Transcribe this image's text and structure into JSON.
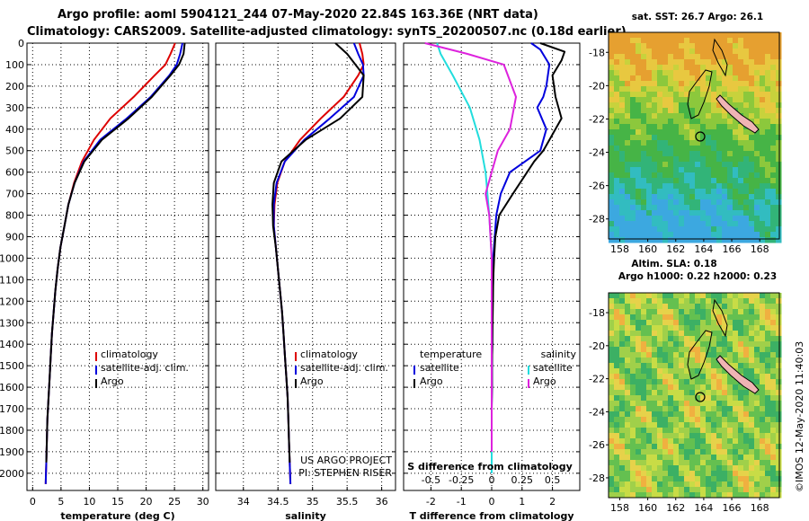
{
  "titles": {
    "line1": "Argo profile: aoml 5904121_244 07-May-2020 22.84S 163.36E (NRT data)",
    "line2": "Climatology: CARS2009. Satellite-adjusted climatology: synTS_20200507.nc (0.18d earlier)"
  },
  "colors": {
    "climatology": "#dd0000",
    "satellite": "#0000dd",
    "argo": "#000000",
    "s_sat": "#22dddd",
    "s_argo": "#dd22dd"
  },
  "depth_axis": {
    "ticks": [
      "0",
      "100",
      "200",
      "300",
      "400",
      "500",
      "600",
      "700",
      "800",
      "900",
      "1000",
      "1100",
      "1200",
      "1300",
      "1400",
      "1500",
      "1600",
      "1700",
      "1800",
      "1900",
      "2000"
    ],
    "range": [
      0,
      2080
    ]
  },
  "chart_data": [
    {
      "type": "line",
      "id": "temperature",
      "xlabel": "temperature (deg C)",
      "xlim": [
        -1,
        31
      ],
      "xticks": [
        "0",
        "5",
        "10",
        "15",
        "20",
        "25",
        "30"
      ],
      "xtick_values": [
        0,
        5,
        10,
        15,
        20,
        25,
        30
      ],
      "legend": [
        "climatology",
        "satellite-adj. clim.",
        "Argo"
      ],
      "series": [
        {
          "name": "climatology",
          "color_key": "climatology",
          "x": [
            25.1,
            24.3,
            23.4,
            21.5,
            17.8,
            13.7,
            10.8,
            8.7,
            7.3,
            6.3,
            5.6,
            4.9,
            4.4,
            4.0,
            3.7,
            3.4,
            3.2,
            3.0,
            2.8,
            2.6,
            2.5,
            2.4,
            2.3
          ],
          "depth": [
            0,
            50,
            100,
            150,
            250,
            350,
            450,
            550,
            650,
            750,
            850,
            950,
            1050,
            1150,
            1250,
            1350,
            1450,
            1550,
            1650,
            1750,
            1850,
            1950,
            2050
          ]
        },
        {
          "name": "satellite-adj. clim.",
          "color_key": "satellite",
          "x": [
            26.4,
            26.0,
            25.4,
            24.1,
            20.8,
            16.6,
            11.9,
            9.0,
            7.4,
            6.3,
            5.6,
            4.9,
            4.4,
            4.0,
            3.7,
            3.4,
            3.2,
            3.0,
            2.8,
            2.6,
            2.5,
            2.4,
            2.3
          ],
          "depth": [
            0,
            50,
            100,
            150,
            250,
            350,
            450,
            550,
            650,
            750,
            850,
            950,
            1050,
            1150,
            1250,
            1350,
            1450,
            1550,
            1650,
            1750,
            1850,
            1950,
            2050
          ]
        },
        {
          "name": "Argo",
          "color_key": "argo",
          "x": [
            26.8,
            26.6,
            25.8,
            24.3,
            21.0,
            16.9,
            12.2,
            9.1,
            7.4,
            6.3,
            5.6,
            4.9,
            4.4,
            4.0,
            3.7,
            3.4,
            3.2,
            3.0,
            2.8,
            2.6,
            2.5,
            2.4
          ],
          "depth": [
            0,
            50,
            100,
            150,
            250,
            350,
            450,
            550,
            650,
            750,
            850,
            950,
            1050,
            1150,
            1250,
            1350,
            1450,
            1550,
            1650,
            1750,
            1850,
            1950
          ]
        }
      ]
    },
    {
      "type": "line",
      "id": "salinity",
      "xlabel": "salinity",
      "xlim": [
        33.6,
        36.2
      ],
      "xticks": [
        "34",
        "34.5",
        "35",
        "35.5",
        "36"
      ],
      "xtick_values": [
        34,
        34.5,
        35,
        35.5,
        36
      ],
      "legend": [
        "climatology",
        "satellite-adj. clim.",
        "Argo"
      ],
      "annotation": [
        "US ARGO PROJECT",
        "PI: STEPHEN RISER"
      ],
      "series": [
        {
          "name": "climatology",
          "color_key": "climatology",
          "x": [
            35.68,
            35.72,
            35.74,
            35.66,
            35.45,
            35.12,
            34.82,
            34.6,
            34.49,
            34.45,
            34.44,
            34.47,
            34.5,
            34.53,
            34.56,
            34.58,
            34.6,
            34.62,
            34.64,
            34.65,
            34.66,
            34.67,
            34.68
          ],
          "depth": [
            0,
            50,
            100,
            150,
            250,
            350,
            450,
            550,
            650,
            750,
            850,
            950,
            1050,
            1150,
            1250,
            1350,
            1450,
            1550,
            1650,
            1750,
            1850,
            1950,
            2050
          ]
        },
        {
          "name": "satellite-adj. clim.",
          "color_key": "satellite",
          "x": [
            35.6,
            35.66,
            35.73,
            35.74,
            35.6,
            35.25,
            34.88,
            34.6,
            34.48,
            34.44,
            34.44,
            34.47,
            34.5,
            34.53,
            34.56,
            34.58,
            34.6,
            34.62,
            34.64,
            34.65,
            34.66,
            34.67,
            34.68
          ],
          "depth": [
            0,
            50,
            100,
            150,
            250,
            350,
            450,
            550,
            650,
            750,
            850,
            950,
            1050,
            1150,
            1250,
            1350,
            1450,
            1550,
            1650,
            1750,
            1850,
            1950,
            2050
          ]
        },
        {
          "name": "Argo",
          "color_key": "argo",
          "x": [
            35.33,
            35.5,
            35.62,
            35.74,
            35.72,
            35.4,
            34.9,
            34.55,
            34.44,
            34.42,
            34.43,
            34.47,
            34.5,
            34.53,
            34.56,
            34.58,
            34.6,
            34.62,
            34.64,
            34.65,
            34.66,
            34.67
          ],
          "depth": [
            0,
            50,
            100,
            150,
            250,
            350,
            450,
            550,
            650,
            750,
            850,
            950,
            1050,
            1150,
            1250,
            1350,
            1450,
            1550,
            1650,
            1750,
            1850,
            1950
          ]
        }
      ]
    },
    {
      "type": "line",
      "id": "differences",
      "xlabel": "T difference from climatology",
      "xlim": [
        -2.9,
        2.9
      ],
      "xticks": [
        "-2",
        "-1",
        "0",
        "1",
        "2"
      ],
      "xtick_values": [
        -2,
        -1,
        0,
        1,
        2
      ],
      "secondary_xlabel": "S difference from climatology",
      "secondary_xticks": [
        "-0.5",
        "-0.25",
        "0",
        "0.25",
        "0.5"
      ],
      "secondary_xtick_values": [
        -0.5,
        -0.25,
        0,
        0.25,
        0.5
      ],
      "legend_left_title": "temperature",
      "legend_right_title": "salinity",
      "legend_left": [
        "satellite",
        "Argo"
      ],
      "legend_right": [
        "satellite",
        "Argo"
      ],
      "series": [
        {
          "name": "temperature satellite",
          "color_key": "satellite",
          "units": "T",
          "x": [
            1.3,
            1.6,
            1.9,
            1.8,
            1.7,
            1.5,
            1.8,
            1.6,
            0.6,
            0.3,
            0.15,
            0.1,
            0.05,
            0.05,
            0.03,
            0.02,
            0.02,
            0.01,
            0.01,
            0.0,
            0.0,
            0.0,
            0.0
          ],
          "depth": [
            0,
            30,
            100,
            200,
            250,
            300,
            400,
            500,
            600,
            700,
            800,
            900,
            1000,
            1100,
            1200,
            1300,
            1400,
            1500,
            1600,
            1700,
            1800,
            1900,
            2000
          ]
        },
        {
          "name": "temperature Argo",
          "color_key": "argo",
          "units": "T",
          "x": [
            1.6,
            2.4,
            2.3,
            2.0,
            2.1,
            2.3,
            1.9,
            1.7,
            1.4,
            0.7,
            0.25,
            0.12,
            0.08,
            0.05,
            0.04,
            0.03,
            0.02,
            0.01,
            0.01,
            0.0,
            0.0,
            0.0
          ],
          "depth": [
            0,
            40,
            80,
            150,
            250,
            350,
            450,
            500,
            550,
            700,
            800,
            900,
            1000,
            1100,
            1200,
            1300,
            1400,
            1500,
            1600,
            1700,
            1800,
            1900
          ]
        },
        {
          "name": "salinity satellite",
          "color_key": "s_sat",
          "units": "S",
          "x": [
            -0.45,
            -0.42,
            -0.32,
            -0.18,
            -0.1,
            -0.05,
            -0.02,
            0.0,
            0.0,
            0.0,
            0.0,
            0.0,
            0.0,
            0.0,
            0.0
          ],
          "depth": [
            0,
            50,
            150,
            300,
            450,
            600,
            800,
            1000,
            1200,
            1400,
            1600,
            1700,
            1800,
            1900,
            2000
          ]
        },
        {
          "name": "salinity Argo",
          "color_key": "s_argo",
          "units": "S",
          "x": [
            -0.55,
            -0.2,
            0.1,
            0.2,
            0.15,
            0.05,
            -0.05,
            -0.02,
            0.0,
            0.0,
            0.0,
            0.0,
            0.0,
            0.0,
            0.0
          ],
          "depth": [
            0,
            50,
            100,
            250,
            400,
            500,
            700,
            800,
            1000,
            1200,
            1400,
            1600,
            1700,
            1800,
            1900
          ]
        }
      ]
    }
  ],
  "maps": [
    {
      "id": "sst-map",
      "title_line1": "sat. SST: 26.7 Argo: 26.1",
      "title_line2": "",
      "lat_ticks": [
        "-18",
        "-20",
        "-22",
        "-24",
        "-26",
        "-28"
      ],
      "lon_ticks": [
        "158",
        "160",
        "162",
        "164",
        "166",
        "168"
      ]
    },
    {
      "id": "sla-map",
      "title_line1": "Altim. SLA: 0.18",
      "title_line2": "Argo h1000: 0.22 h2000: 0.23",
      "lat_ticks": [
        "-18",
        "-20",
        "-22",
        "-24",
        "-26",
        "-28"
      ],
      "lon_ticks": [
        "158",
        "160",
        "162",
        "164",
        "166",
        "168"
      ]
    }
  ],
  "credit": "©IMOS 12-May-2020 11:40:03"
}
